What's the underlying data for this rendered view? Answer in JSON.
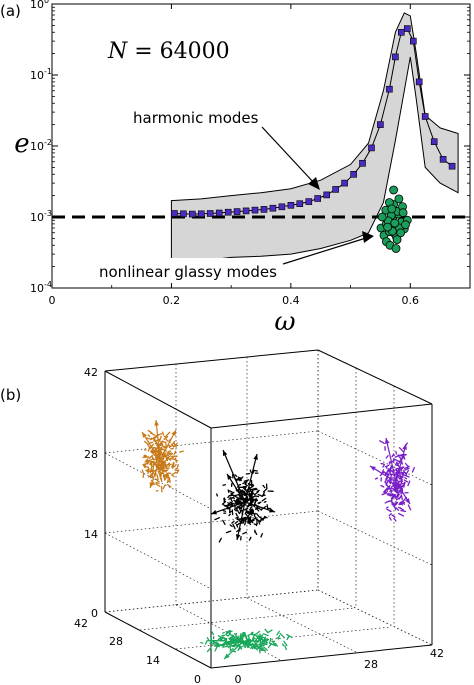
{
  "chart_data": [
    {
      "type": "line",
      "panel_label": "(a)",
      "xlabel": "ω",
      "ylabel": "e",
      "xlim": [
        0,
        0.7
      ],
      "ylim": [
        0.0001,
        1
      ],
      "yscale": "log",
      "x_ticks": [
        "0",
        "0.2",
        "0.4",
        "0.6"
      ],
      "y_ticks": [
        {
          "base": "10",
          "exp": "-4"
        },
        {
          "base": "10",
          "exp": "-3"
        },
        {
          "base": "10",
          "exp": "-2"
        },
        {
          "base": "10",
          "exp": "-1"
        },
        {
          "base": "10",
          "exp": "0"
        }
      ],
      "inset_text": {
        "lhs": "N",
        "eq": " = ",
        "rhs": "64000"
      },
      "annotations": [
        "harmonic modes",
        "nonlinear glassy modes"
      ],
      "reference_line": {
        "y": 0.001,
        "style": "dashed"
      },
      "band": {
        "x": [
          0.2,
          0.25,
          0.3,
          0.35,
          0.4,
          0.45,
          0.5,
          0.53,
          0.555,
          0.575,
          0.59,
          0.6,
          0.61,
          0.625,
          0.65,
          0.68
        ],
        "upper": [
          0.0017,
          0.0018,
          0.002,
          0.0022,
          0.0025,
          0.0033,
          0.0055,
          0.011,
          0.06,
          0.4,
          0.75,
          0.68,
          0.2,
          0.027,
          0.018,
          0.015
        ],
        "lower": [
          0.00022,
          0.00024,
          0.00027,
          0.00028,
          0.0003,
          0.00036,
          0.00047,
          0.0006,
          0.0016,
          0.012,
          0.06,
          0.18,
          0.045,
          0.005,
          0.003,
          0.0022
        ]
      },
      "series": [
        {
          "color": "#4b2bbf",
          "marker": "square",
          "x": [
            0.205,
            0.22,
            0.235,
            0.25,
            0.265,
            0.28,
            0.295,
            0.31,
            0.325,
            0.34,
            0.355,
            0.37,
            0.385,
            0.4,
            0.415,
            0.43,
            0.445,
            0.46,
            0.475,
            0.49,
            0.505,
            0.52,
            0.535,
            0.55,
            0.565,
            0.575,
            0.585,
            0.595,
            0.605,
            0.615,
            0.625,
            0.64,
            0.655,
            0.67
          ],
          "y": [
            0.00112,
            0.00111,
            0.0011,
            0.00111,
            0.00112,
            0.00114,
            0.00117,
            0.00119,
            0.00122,
            0.00125,
            0.00128,
            0.00133,
            0.00139,
            0.00146,
            0.00154,
            0.00165,
            0.00182,
            0.00205,
            0.00245,
            0.003,
            0.004,
            0.0057,
            0.0094,
            0.02,
            0.063,
            0.18,
            0.4,
            0.45,
            0.3,
            0.08,
            0.026,
            0.0115,
            0.0065,
            0.0052
          ]
        },
        {
          "color": "#1a9e5a",
          "marker": "circle",
          "x": [
            0.551,
            0.556,
            0.56,
            0.565,
            0.57,
            0.575,
            0.58,
            0.585,
            0.59,
            0.595,
            0.56,
            0.568,
            0.574,
            0.579,
            0.587,
            0.563,
            0.572,
            0.582,
            0.566,
            0.577,
            0.553,
            0.588,
            0.57,
            0.581,
            0.559,
            0.574,
            0.565,
            0.592,
            0.578,
            0.572,
            0.584,
            0.562,
            0.569,
            0.576
          ],
          "y": [
            0.0007,
            0.00055,
            0.0008,
            0.00062,
            0.00095,
            0.00075,
            0.0011,
            0.00085,
            0.00068,
            0.0009,
            0.00045,
            0.00105,
            0.00058,
            0.0012,
            0.0014,
            0.00088,
            0.0015,
            0.0007,
            0.0004,
            0.00052,
            0.001,
            0.00115,
            0.00063,
            0.0018,
            0.00125,
            0.00082,
            0.0016,
            0.00078,
            0.00048,
            0.0024,
            0.0006,
            0.00072,
            0.0013,
            0.00036
          ]
        }
      ]
    },
    {
      "type": "scatter",
      "panel_label": "(b)",
      "projection": "3d",
      "xlim": [
        0,
        42
      ],
      "ylim": [
        0,
        42
      ],
      "zlim": [
        0,
        42
      ],
      "z_ticks": [
        "0",
        "14",
        "28",
        "42"
      ],
      "y_ticks": [
        "0",
        "14",
        "28",
        "42"
      ],
      "x_ticks": [
        "28",
        "42"
      ],
      "clusters": [
        {
          "color": "#000000",
          "center": [
            21,
            21,
            21
          ]
        },
        {
          "color": "#c87a1a",
          "center": [
            21,
            42,
            29
          ],
          "projection": "back wall (y = 42)"
        },
        {
          "color": "#7a1fc8",
          "center": [
            42,
            21,
            21
          ],
          "projection": "side wall (x = 42)"
        },
        {
          "color": "#1aa85a",
          "center": [
            21,
            21,
            0
          ],
          "projection": "floor (z = 0)"
        }
      ]
    }
  ]
}
